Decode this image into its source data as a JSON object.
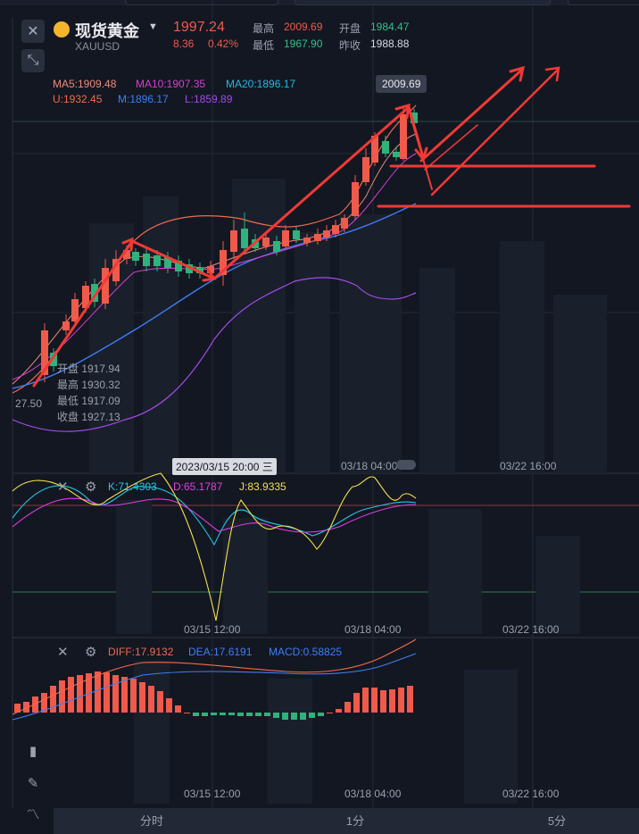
{
  "header": {
    "title": "现货黄金",
    "symbol": "XAUUSD",
    "last_price": "1997.24",
    "change": "8.36",
    "change_pct": "0.42%",
    "high_label": "最高",
    "high_value": "2009.69",
    "low_label": "最低",
    "low_value": "1967.90",
    "open_label": "开盘",
    "open_value": "1984.47",
    "prev_close_label": "昨收",
    "prev_close_value": "1988.88"
  },
  "main_indicators": {
    "ma5": "MA5:1909.48",
    "ma10": "MA10:1907.35",
    "ma20": "MA20:1896.17",
    "upper": "U:1932.45",
    "mid": "M:1896.17",
    "lower": "L:1859.89"
  },
  "high_tag": "2009.69",
  "left_axis_price": "27.50",
  "ohlc_tooltip": {
    "open": "开盘 1917.94",
    "high": "最高 1930.32",
    "low": "最低 1917.09",
    "close": "收盘 1927.13"
  },
  "crosshair_time": "2023/03/15 20:00 三",
  "time_labels_main": [
    "03/18 04:00",
    "03/22 16:00"
  ],
  "kdj": {
    "k": "K:71.4303",
    "d": "D:65.1787",
    "j": "J:83.9335"
  },
  "time_labels_kdj": [
    "03/15 12:00",
    "03/18 04:00",
    "03/22 16:00"
  ],
  "macd": {
    "diff": "DIFF:17.9132",
    "dea": "DEA:17.6191",
    "macd": "MACD:0.58825"
  },
  "time_labels_macd": [
    "03/15 12:00",
    "03/18 04:00",
    "03/22 16:00"
  ],
  "bottom_tabs": [
    "分时",
    "1分",
    "5分"
  ],
  "colors": {
    "background": "#131722",
    "up": "#f05a4b",
    "down": "#2fb27c",
    "ma5": "#f08a7a",
    "ma10": "#d63fd0",
    "ma20": "#28b8e0",
    "boll_upper": "#f06a4e",
    "boll_mid": "#3d7ff5",
    "boll_lower": "#a34be8",
    "k": "#21c7e6",
    "d": "#e13fe0",
    "j": "#f2e24a",
    "annotation": "#f03a35"
  },
  "icons": [
    "close-icon",
    "collapse-icon",
    "gold-coin-icon",
    "dropdown-icon",
    "settings-gear-icon",
    "candlestick-icon",
    "pen-icon",
    "indicator-icon"
  ]
}
